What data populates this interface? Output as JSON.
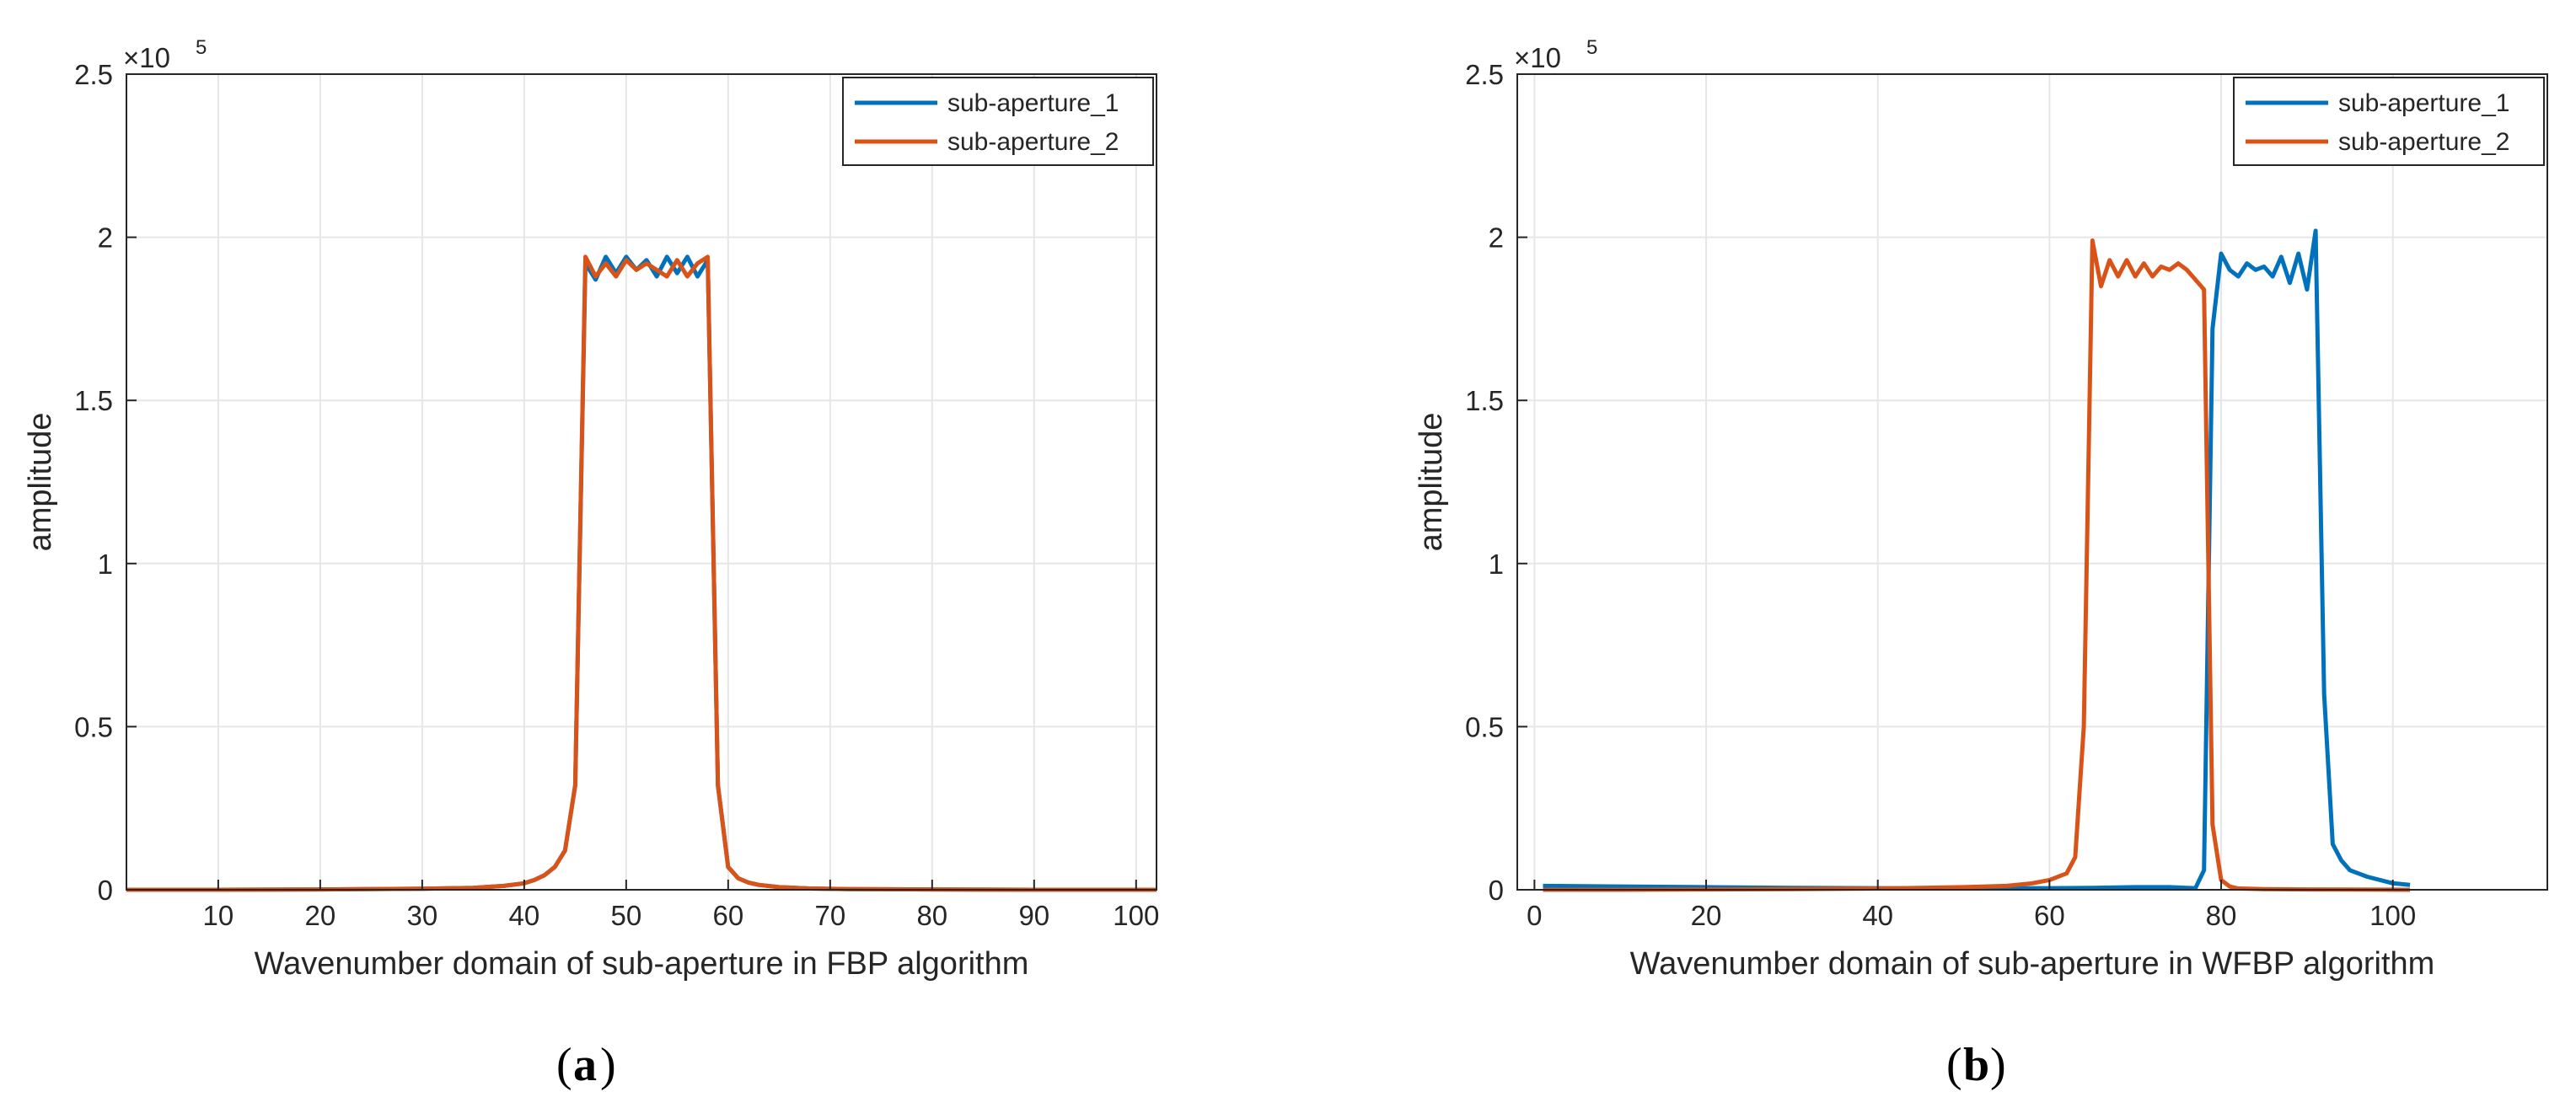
{
  "chart_data": [
    {
      "type": "line",
      "panel": "(a)",
      "caption": "a",
      "xlabel": "Wavenumber domain of sub-aperture in FBP algorithm",
      "ylabel": "amplitude",
      "exponent_label": "×10",
      "exponent_power": "5",
      "xlim": [
        1,
        102
      ],
      "ylim": [
        0,
        2.5
      ],
      "xticks": [
        10,
        20,
        30,
        40,
        50,
        60,
        70,
        80,
        90,
        100
      ],
      "yticks": [
        0,
        0.5,
        1,
        1.5,
        2,
        2.5
      ],
      "ytick_labels": [
        "0",
        "0.5",
        "1",
        "1.5",
        "2",
        "2.5"
      ],
      "grid": true,
      "legend_position": "top-right",
      "series": [
        {
          "name": "sub-aperture_1",
          "color": "#0072BD",
          "x": [
            1,
            10,
            20,
            30,
            35,
            38,
            40,
            41,
            42,
            43,
            44,
            45,
            46,
            47,
            48,
            49,
            50,
            51,
            52,
            53,
            54,
            55,
            56,
            57,
            58,
            59,
            60,
            61,
            62,
            63,
            65,
            68,
            72,
            80,
            90,
            102
          ],
          "y": [
            0,
            0,
            0.001,
            0.003,
            0.006,
            0.012,
            0.02,
            0.03,
            0.045,
            0.07,
            0.12,
            0.32,
            1.92,
            1.87,
            1.94,
            1.89,
            1.94,
            1.9,
            1.93,
            1.88,
            1.94,
            1.89,
            1.94,
            1.88,
            1.93,
            0.32,
            0.07,
            0.035,
            0.022,
            0.015,
            0.008,
            0.004,
            0.002,
            0.001,
            0,
            0
          ]
        },
        {
          "name": "sub-aperture_2",
          "color": "#D95319",
          "x": [
            1,
            10,
            20,
            30,
            35,
            38,
            40,
            41,
            42,
            43,
            44,
            45,
            46,
            47,
            48,
            49,
            50,
            51,
            52,
            53,
            54,
            55,
            56,
            57,
            58,
            59,
            60,
            61,
            62,
            63,
            65,
            68,
            72,
            80,
            90,
            102
          ],
          "y": [
            0,
            0,
            0.001,
            0.003,
            0.006,
            0.012,
            0.02,
            0.03,
            0.045,
            0.07,
            0.12,
            0.32,
            1.94,
            1.88,
            1.92,
            1.88,
            1.93,
            1.9,
            1.92,
            1.9,
            1.88,
            1.93,
            1.88,
            1.92,
            1.94,
            0.32,
            0.07,
            0.035,
            0.022,
            0.015,
            0.008,
            0.004,
            0.002,
            0.001,
            0,
            0
          ]
        }
      ]
    },
    {
      "type": "line",
      "panel": "(b)",
      "caption": "b",
      "xlabel": "Wavenumber domain of sub-aperture in WFBP algorithm",
      "ylabel": "amplitude",
      "exponent_label": "×10",
      "exponent_power": "5",
      "xlim": [
        -2,
        118
      ],
      "ylim": [
        0,
        2.5
      ],
      "xticks": [
        0,
        20,
        40,
        60,
        80,
        100
      ],
      "yticks": [
        0,
        0.5,
        1,
        1.5,
        2,
        2.5
      ],
      "ytick_labels": [
        "0",
        "0.5",
        "1",
        "1.5",
        "2",
        "2.5"
      ],
      "grid": true,
      "legend_position": "top-right",
      "series": [
        {
          "name": "sub-aperture_1",
          "color": "#0072BD",
          "x": [
            1,
            10,
            20,
            30,
            40,
            50,
            60,
            65,
            70,
            74,
            76,
            77,
            78,
            79,
            80,
            81,
            82,
            83,
            84,
            85,
            86,
            87,
            88,
            89,
            90,
            91,
            92,
            93,
            94,
            95,
            97,
            100,
            102
          ],
          "y": [
            0.012,
            0.01,
            0.008,
            0.006,
            0.005,
            0.004,
            0.005,
            0.006,
            0.008,
            0.008,
            0.006,
            0.005,
            0.06,
            1.72,
            1.95,
            1.9,
            1.88,
            1.92,
            1.9,
            1.91,
            1.88,
            1.94,
            1.86,
            1.95,
            1.84,
            2.02,
            0.6,
            0.14,
            0.09,
            0.06,
            0.04,
            0.02,
            0.015
          ]
        },
        {
          "name": "sub-aperture_2",
          "color": "#D95319",
          "x": [
            1,
            10,
            20,
            30,
            40,
            50,
            55,
            58,
            60,
            62,
            63,
            64,
            65,
            66,
            67,
            68,
            69,
            70,
            71,
            72,
            73,
            74,
            75,
            76,
            77,
            78,
            79,
            80,
            81,
            82,
            85,
            90,
            102
          ],
          "y": [
            0,
            0,
            0.001,
            0.002,
            0.004,
            0.008,
            0.012,
            0.02,
            0.03,
            0.05,
            0.1,
            0.5,
            1.99,
            1.85,
            1.93,
            1.88,
            1.93,
            1.88,
            1.92,
            1.88,
            1.91,
            1.9,
            1.92,
            1.9,
            1.87,
            1.84,
            0.2,
            0.03,
            0.01,
            0.004,
            0.002,
            0.001,
            0
          ]
        }
      ]
    }
  ]
}
